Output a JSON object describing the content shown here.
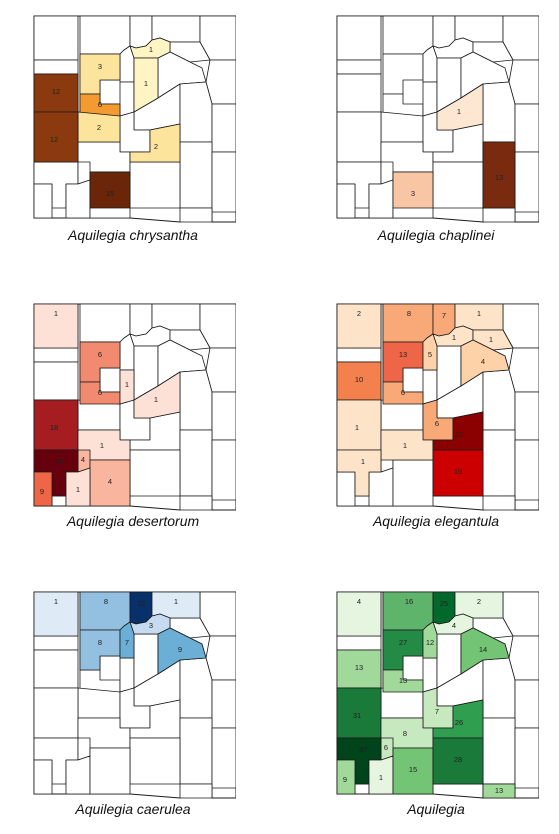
{
  "panels": [
    {
      "title": "Aquilegia chrysantha",
      "counties": [
        {
          "id": "B3",
          "count": 3,
          "color": "#fde49c"
        },
        {
          "id": "B4",
          "count": 1,
          "color": "#fff5c4"
        },
        {
          "id": "C1",
          "count": 12,
          "color": "#8b3a0f"
        },
        {
          "id": "C3",
          "count": 6,
          "color": "#f39a30"
        },
        {
          "id": "C4b",
          "count": 1,
          "color": "#fff5c4"
        },
        {
          "id": "D2",
          "count": 2,
          "color": "#fde49c"
        },
        {
          "id": "E1",
          "count": 12,
          "color": "#8b3a0f"
        },
        {
          "id": "E3",
          "count": 15,
          "color": "#6b2508"
        },
        {
          "id": "E4",
          "count": 2,
          "color": "#fde49c"
        }
      ]
    },
    {
      "title": "Aquilegia chaplinei",
      "counties": [
        {
          "id": "D3",
          "count": 1,
          "color": "#fde6d2"
        },
        {
          "id": "E3",
          "count": 3,
          "color": "#f8c6a4"
        },
        {
          "id": "E5",
          "count": 13,
          "color": "#7a2a0e"
        }
      ]
    },
    {
      "title": "Aquilegia desertorum",
      "counties": [
        {
          "id": "A1",
          "count": 1,
          "color": "#fde0d6"
        },
        {
          "id": "B3",
          "count": 6,
          "color": "#f18a6e"
        },
        {
          "id": "C3",
          "count": 6,
          "color": "#f18a6e"
        },
        {
          "id": "C4",
          "count": 1,
          "color": "#fde0d6"
        },
        {
          "id": "D3",
          "count": 1,
          "color": "#fde0d6"
        },
        {
          "id": "E1",
          "count": 18,
          "color": "#a51c21"
        },
        {
          "id": "E2",
          "count": 1,
          "color": "#fde0d6"
        },
        {
          "id": "E3",
          "count": 1,
          "color": "#fde0d6"
        },
        {
          "id": "F2",
          "count": 4,
          "color": "#f9b59d"
        },
        {
          "id": "F1",
          "count": 25,
          "color": "#67000d"
        },
        {
          "id": "G3",
          "count": 4,
          "color": "#f9b59d"
        },
        {
          "id": "G1",
          "count": 9,
          "color": "#ef6548"
        },
        {
          "id": "G2",
          "count": 1,
          "color": "#fde0d6"
        }
      ]
    },
    {
      "title": "Aquilegia elegantula",
      "counties": [
        {
          "id": "A1",
          "count": 2,
          "color": "#fde3c8"
        },
        {
          "id": "A3",
          "count": 8,
          "color": "#f9a977"
        },
        {
          "id": "A4",
          "count": 7,
          "color": "#f9a977"
        },
        {
          "id": "A5",
          "count": 1,
          "color": "#fde3c8"
        },
        {
          "id": "B3",
          "count": 13,
          "color": "#ef6548"
        },
        {
          "id": "B4",
          "count": 1,
          "color": "#fde3c8"
        },
        {
          "id": "B5",
          "count": 1,
          "color": "#fde3c8"
        },
        {
          "id": "C3b",
          "count": 5,
          "color": "#fdd2a8"
        },
        {
          "id": "C5",
          "count": 4,
          "color": "#fdd2a8"
        },
        {
          "id": "C1",
          "count": 10,
          "color": "#f4804d"
        },
        {
          "id": "C3",
          "count": 6,
          "color": "#f9a977"
        },
        {
          "id": "D4",
          "count": 6,
          "color": "#f9a977"
        },
        {
          "id": "E1",
          "count": 1,
          "color": "#fde3c8"
        },
        {
          "id": "E2",
          "count": 1,
          "color": "#fde3c8"
        },
        {
          "id": "E4",
          "count": 27,
          "color": "#8b0000"
        },
        {
          "id": "F1",
          "count": 1,
          "color": "#fde3c8"
        },
        {
          "id": "F4",
          "count": 19,
          "color": "#cc0000"
        }
      ]
    },
    {
      "title": "Aquilegia caerulea",
      "counties": [
        {
          "id": "A1",
          "count": 1,
          "color": "#deebf7"
        },
        {
          "id": "A3",
          "count": 8,
          "color": "#93c0e0"
        },
        {
          "id": "A4",
          "count": 22,
          "color": "#08306b"
        },
        {
          "id": "A5",
          "count": 1,
          "color": "#deebf7"
        },
        {
          "id": "B4",
          "count": 3,
          "color": "#c6dbef"
        },
        {
          "id": "B3",
          "count": 8,
          "color": "#93c0e0"
        },
        {
          "id": "C3b",
          "count": 7,
          "color": "#6baed6"
        },
        {
          "id": "C5",
          "count": 9,
          "color": "#6baed6"
        }
      ]
    },
    {
      "title": "Aquilegia",
      "counties": [
        {
          "id": "A1",
          "count": 4,
          "color": "#e5f5e0"
        },
        {
          "id": "A3",
          "count": 16,
          "color": "#5fb46b"
        },
        {
          "id": "A4",
          "count": 25,
          "color": "#00692b"
        },
        {
          "id": "A5",
          "count": 2,
          "color": "#e5f5e0"
        },
        {
          "id": "B3",
          "count": 27,
          "color": "#238b45"
        },
        {
          "id": "B4",
          "count": 4,
          "color": "#e5f5e0"
        },
        {
          "id": "C3b",
          "count": 12,
          "color": "#a1d99b"
        },
        {
          "id": "C5",
          "count": 14,
          "color": "#74c476"
        },
        {
          "id": "C3",
          "count": 13,
          "color": "#a1d99b"
        },
        {
          "id": "C1",
          "count": 13,
          "color": "#a1d99b"
        },
        {
          "id": "D4",
          "count": 7,
          "color": "#c7e9c0"
        },
        {
          "id": "E1",
          "count": 31,
          "color": "#1a7a3a"
        },
        {
          "id": "E2",
          "count": 8,
          "color": "#c7e9c0"
        },
        {
          "id": "E4",
          "count": 26,
          "color": "#2f9e4f"
        },
        {
          "id": "F2",
          "count": 6,
          "color": "#c7e9c0"
        },
        {
          "id": "F1",
          "count": 37,
          "color": "#00441b"
        },
        {
          "id": "G2",
          "count": 1,
          "color": "#e5f5e0"
        },
        {
          "id": "G3",
          "count": 15,
          "color": "#74c476"
        },
        {
          "id": "F4",
          "count": 28,
          "color": "#1a7a3a"
        },
        {
          "id": "G5",
          "count": 13,
          "color": "#a1d99b"
        },
        {
          "id": "G1",
          "count": 9,
          "color": "#a1d99b"
        }
      ]
    }
  ]
}
